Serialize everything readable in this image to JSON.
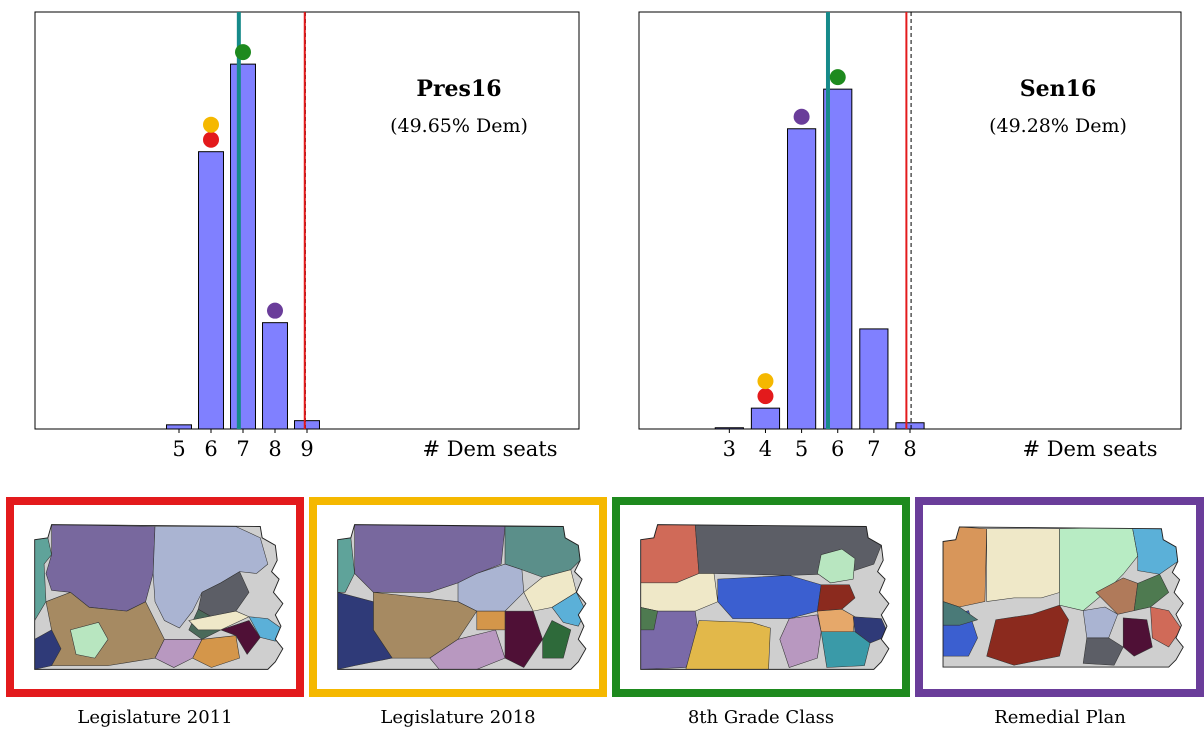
{
  "chart_data": [
    {
      "type": "bar",
      "title": "Pres16",
      "subtitle": "(49.65% Dem)",
      "xlabel": "# Dem seats",
      "ylabel": "",
      "x_ticks": [
        5,
        6,
        7,
        8,
        9
      ],
      "xlim": [
        0.5,
        17.5
      ],
      "categories": [
        5,
        6,
        7,
        8,
        9
      ],
      "values": [
        0.01,
        0.665,
        0.875,
        0.255,
        0.02
      ],
      "ylim": [
        0,
        1.0
      ],
      "mean_line": 6.87,
      "proportional_line": 8.93,
      "dashed_line": 8.95,
      "plan_markers": [
        {
          "plan": "Legislature 2011",
          "seats": 6,
          "color": "#e31a1c"
        },
        {
          "plan": "Legislature 2018",
          "seats": 6,
          "color": "#f5b800"
        },
        {
          "plan": "8th Grade Class",
          "seats": 7,
          "color": "#1e8a1e"
        },
        {
          "plan": "Remedial Plan",
          "seats": 8,
          "color": "#6a3d9a"
        }
      ]
    },
    {
      "type": "bar",
      "title": "Sen16",
      "subtitle": "(49.28% Dem)",
      "xlabel": "# Dem seats",
      "ylabel": "",
      "x_ticks": [
        3,
        4,
        5,
        6,
        7,
        8
      ],
      "xlim": [
        0.5,
        15.5
      ],
      "categories": [
        3,
        4,
        5,
        6,
        7,
        8
      ],
      "values": [
        0.003,
        0.05,
        0.72,
        0.815,
        0.24,
        0.015
      ],
      "ylim": [
        0,
        1.0
      ],
      "mean_line": 5.73,
      "proportional_line": 7.9,
      "dashed_line": 8.03,
      "plan_markers": [
        {
          "plan": "Legislature 2011",
          "seats": 4,
          "color": "#e31a1c"
        },
        {
          "plan": "Legislature 2018",
          "seats": 4,
          "color": "#f5b800"
        },
        {
          "plan": "8th Grade Class",
          "seats": 6,
          "color": "#1e8a1e"
        },
        {
          "plan": "Remedial Plan",
          "seats": 5,
          "color": "#6a3d9a"
        }
      ]
    }
  ],
  "maps": [
    {
      "caption": "Legislature 2011",
      "border_color": "#e31a1c",
      "district_colors": [
        "#5fa39a",
        "#78689e",
        "#aab4d2",
        "#a68a62",
        "#2f3a78",
        "#b8e6c0",
        "#5c5e66",
        "#4a6a5a",
        "#d4964a",
        "#4f1036",
        "#b898c0",
        "#efe8c8",
        "#5bb0d8"
      ]
    },
    {
      "caption": "Legislature 2018",
      "border_color": "#f5b800",
      "district_colors": [
        "#5fa39a",
        "#78689e",
        "#5b8f8a",
        "#aab4d2",
        "#a68a62",
        "#2f3a78",
        "#b898c0",
        "#4f1036",
        "#d4964a",
        "#efe8c8",
        "#2e6a3a",
        "#5bb0d8"
      ]
    },
    {
      "caption": "8th Grade Class",
      "border_color": "#1e8a1e",
      "district_colors": [
        "#d06a58",
        "#5c5e66",
        "#efe8c8",
        "#3b5fd0",
        "#7a6aa8",
        "#e2b84a",
        "#4e7a50",
        "#b8e6c0",
        "#8b2a1e",
        "#e6a86a",
        "#2f3a78",
        "#b898c0",
        "#3a9aa8"
      ]
    },
    {
      "caption": "Remedial Plan",
      "border_color": "#6a3d9a",
      "district_colors": [
        "#d8965a",
        "#efe8c8",
        "#b8ecc4",
        "#5bb0d8",
        "#3b5fd0",
        "#8b2a1e",
        "#4a7a78",
        "#b07a5a",
        "#4e7a50",
        "#aab4d2",
        "#5c5e66",
        "#4f1036",
        "#d06a58"
      ]
    }
  ]
}
